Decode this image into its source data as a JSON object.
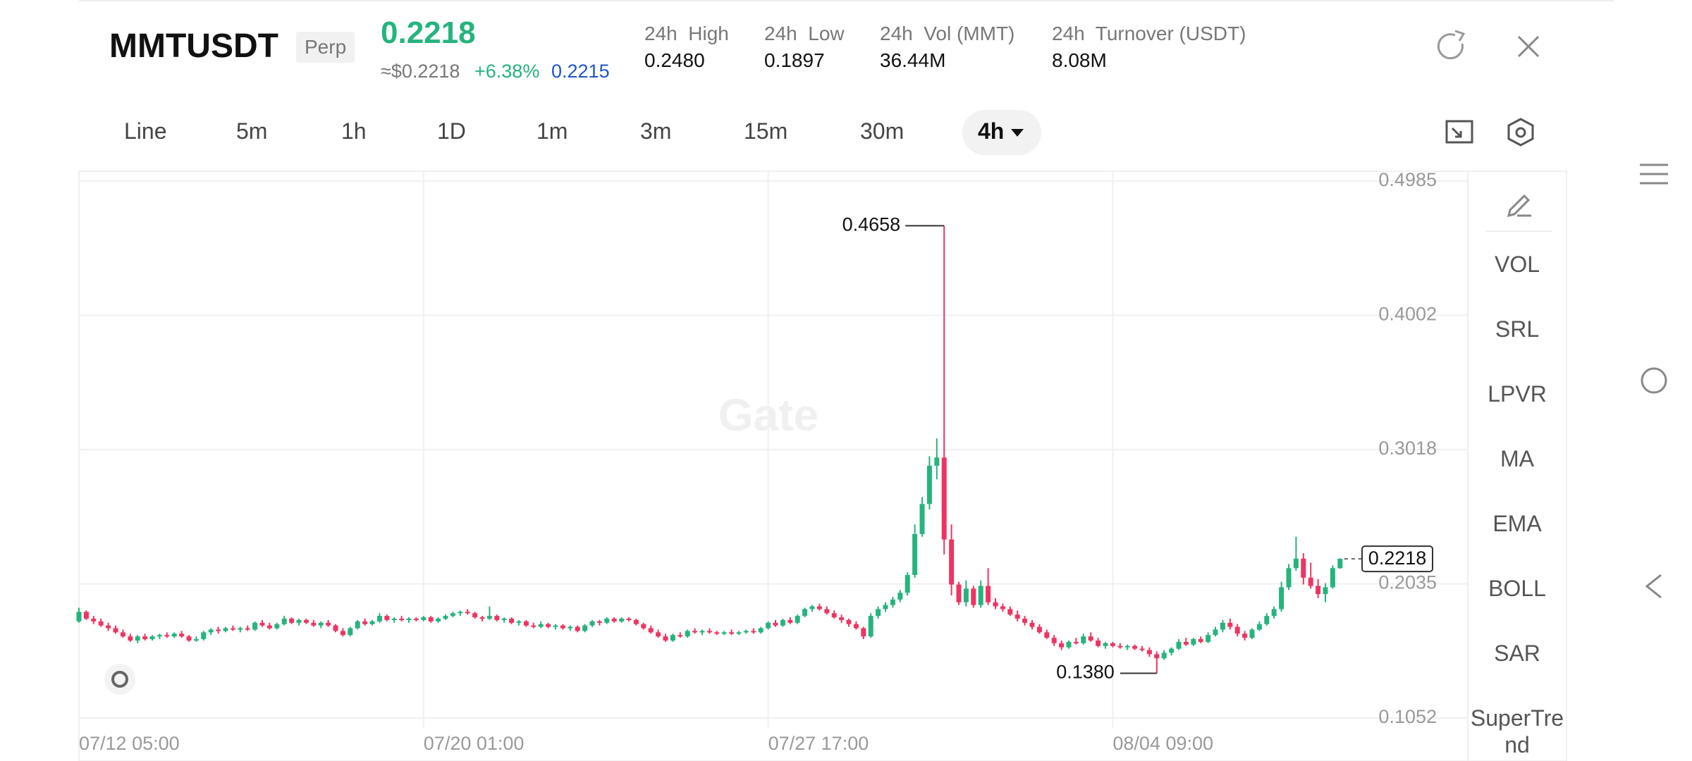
{
  "header": {
    "symbol": "MMTUSDT",
    "badge": "Perp",
    "price": "0.2218",
    "approx": "≈$0.2218",
    "change": "+6.38%",
    "mark": "0.2215",
    "stats": [
      {
        "label": "24h  High",
        "value": "0.2480"
      },
      {
        "label": "24h  Low",
        "value": "0.1897"
      },
      {
        "label": "24h  Vol (MMT)",
        "value": "36.44M"
      },
      {
        "label": "24h  Turnover (USDT)",
        "value": "8.08M"
      }
    ]
  },
  "timeframes": [
    "Line",
    "5m",
    "1h",
    "1D",
    "1m",
    "3m",
    "15m",
    "30m",
    "4h"
  ],
  "indicators": [
    "VOL",
    "SRL",
    "LPVR",
    "MA",
    "EMA",
    "BOLL",
    "SAR",
    "SuperTrend"
  ],
  "chart_data": {
    "type": "candlestick",
    "watermark": "Gate",
    "ylim": [
      0.098,
      0.5057
    ],
    "yticks": [
      0.4985,
      0.4002,
      0.3018,
      0.2035,
      0.1052
    ],
    "xticks": [
      {
        "value": 0,
        "label": "07/12 05:00"
      },
      {
        "value": 47,
        "label": "07/20 01:00"
      },
      {
        "value": 94,
        "label": "07/27 17:00"
      },
      {
        "value": 141,
        "label": "08/04 09:00"
      }
    ],
    "up_color": "#25b47c",
    "down_color": "#ef3461",
    "high_label": {
      "value": 0.4658,
      "label": "0.4658"
    },
    "low_label": {
      "value": 0.138,
      "label": "0.1380"
    },
    "last_label": {
      "value": 0.2218,
      "label": "0.2218"
    },
    "ohlc": [
      [
        0.176,
        0.186,
        0.175,
        0.183
      ],
      [
        0.183,
        0.184,
        0.177,
        0.178
      ],
      [
        0.178,
        0.18,
        0.174,
        0.176
      ],
      [
        0.176,
        0.178,
        0.172,
        0.173
      ],
      [
        0.173,
        0.175,
        0.169,
        0.171
      ],
      [
        0.171,
        0.173,
        0.167,
        0.168
      ],
      [
        0.168,
        0.17,
        0.164,
        0.165
      ],
      [
        0.165,
        0.167,
        0.161,
        0.162
      ],
      [
        0.162,
        0.166,
        0.16,
        0.165
      ],
      [
        0.165,
        0.167,
        0.162,
        0.163
      ],
      [
        0.163,
        0.166,
        0.162,
        0.165
      ],
      [
        0.165,
        0.167,
        0.163,
        0.166
      ],
      [
        0.166,
        0.168,
        0.164,
        0.165
      ],
      [
        0.165,
        0.168,
        0.164,
        0.167
      ],
      [
        0.167,
        0.169,
        0.164,
        0.165
      ],
      [
        0.165,
        0.166,
        0.161,
        0.162
      ],
      [
        0.162,
        0.165,
        0.161,
        0.163
      ],
      [
        0.163,
        0.169,
        0.162,
        0.168
      ],
      [
        0.168,
        0.171,
        0.166,
        0.17
      ],
      [
        0.17,
        0.172,
        0.167,
        0.169
      ],
      [
        0.169,
        0.172,
        0.168,
        0.171
      ],
      [
        0.171,
        0.173,
        0.169,
        0.17
      ],
      [
        0.17,
        0.172,
        0.168,
        0.171
      ],
      [
        0.171,
        0.173,
        0.169,
        0.17
      ],
      [
        0.17,
        0.176,
        0.169,
        0.175
      ],
      [
        0.175,
        0.177,
        0.172,
        0.173
      ],
      [
        0.173,
        0.175,
        0.17,
        0.171
      ],
      [
        0.171,
        0.175,
        0.17,
        0.174
      ],
      [
        0.174,
        0.18,
        0.173,
        0.178
      ],
      [
        0.178,
        0.179,
        0.174,
        0.175
      ],
      [
        0.175,
        0.178,
        0.173,
        0.177
      ],
      [
        0.177,
        0.178,
        0.174,
        0.175
      ],
      [
        0.175,
        0.177,
        0.172,
        0.173
      ],
      [
        0.173,
        0.176,
        0.171,
        0.175
      ],
      [
        0.175,
        0.177,
        0.172,
        0.173
      ],
      [
        0.173,
        0.174,
        0.168,
        0.169
      ],
      [
        0.169,
        0.171,
        0.165,
        0.166
      ],
      [
        0.166,
        0.172,
        0.165,
        0.171
      ],
      [
        0.171,
        0.177,
        0.17,
        0.176
      ],
      [
        0.176,
        0.178,
        0.173,
        0.174
      ],
      [
        0.174,
        0.177,
        0.173,
        0.176
      ],
      [
        0.176,
        0.182,
        0.175,
        0.18
      ],
      [
        0.18,
        0.181,
        0.176,
        0.177
      ],
      [
        0.177,
        0.179,
        0.175,
        0.178
      ],
      [
        0.178,
        0.18,
        0.176,
        0.177
      ],
      [
        0.177,
        0.179,
        0.175,
        0.178
      ],
      [
        0.178,
        0.179,
        0.176,
        0.177
      ],
      [
        0.177,
        0.18,
        0.176,
        0.179
      ],
      [
        0.179,
        0.18,
        0.175,
        0.176
      ],
      [
        0.176,
        0.179,
        0.175,
        0.178
      ],
      [
        0.178,
        0.181,
        0.177,
        0.18
      ],
      [
        0.18,
        0.183,
        0.179,
        0.182
      ],
      [
        0.182,
        0.184,
        0.18,
        0.183
      ],
      [
        0.183,
        0.185,
        0.181,
        0.182
      ],
      [
        0.182,
        0.183,
        0.178,
        0.179
      ],
      [
        0.179,
        0.18,
        0.176,
        0.178
      ],
      [
        0.178,
        0.187,
        0.177,
        0.18
      ],
      [
        0.18,
        0.181,
        0.176,
        0.177
      ],
      [
        0.177,
        0.179,
        0.175,
        0.178
      ],
      [
        0.178,
        0.179,
        0.174,
        0.175
      ],
      [
        0.175,
        0.177,
        0.173,
        0.176
      ],
      [
        0.176,
        0.177,
        0.172,
        0.173
      ],
      [
        0.173,
        0.175,
        0.171,
        0.172
      ],
      [
        0.172,
        0.176,
        0.171,
        0.174
      ],
      [
        0.174,
        0.175,
        0.171,
        0.172
      ],
      [
        0.172,
        0.174,
        0.17,
        0.173
      ],
      [
        0.173,
        0.174,
        0.17,
        0.171
      ],
      [
        0.171,
        0.173,
        0.169,
        0.172
      ],
      [
        0.172,
        0.173,
        0.168,
        0.169
      ],
      [
        0.169,
        0.174,
        0.168,
        0.173
      ],
      [
        0.173,
        0.177,
        0.172,
        0.176
      ],
      [
        0.176,
        0.177,
        0.173,
        0.175
      ],
      [
        0.175,
        0.179,
        0.174,
        0.178
      ],
      [
        0.178,
        0.179,
        0.175,
        0.176
      ],
      [
        0.176,
        0.179,
        0.175,
        0.178
      ],
      [
        0.178,
        0.179,
        0.176,
        0.177
      ],
      [
        0.177,
        0.178,
        0.173,
        0.174
      ],
      [
        0.174,
        0.175,
        0.17,
        0.171
      ],
      [
        0.171,
        0.173,
        0.167,
        0.168
      ],
      [
        0.168,
        0.17,
        0.164,
        0.165
      ],
      [
        0.165,
        0.167,
        0.161,
        0.162
      ],
      [
        0.162,
        0.167,
        0.161,
        0.166
      ],
      [
        0.166,
        0.168,
        0.164,
        0.165
      ],
      [
        0.165,
        0.17,
        0.164,
        0.169
      ],
      [
        0.169,
        0.171,
        0.167,
        0.168
      ],
      [
        0.168,
        0.17,
        0.166,
        0.169
      ],
      [
        0.169,
        0.171,
        0.167,
        0.168
      ],
      [
        0.168,
        0.169,
        0.166,
        0.167
      ],
      [
        0.167,
        0.169,
        0.166,
        0.168
      ],
      [
        0.168,
        0.17,
        0.166,
        0.167
      ],
      [
        0.167,
        0.169,
        0.166,
        0.168
      ],
      [
        0.168,
        0.17,
        0.167,
        0.169
      ],
      [
        0.169,
        0.171,
        0.167,
        0.168
      ],
      [
        0.168,
        0.172,
        0.167,
        0.171
      ],
      [
        0.171,
        0.176,
        0.17,
        0.175
      ],
      [
        0.175,
        0.177,
        0.172,
        0.173
      ],
      [
        0.173,
        0.178,
        0.172,
        0.177
      ],
      [
        0.177,
        0.179,
        0.174,
        0.175
      ],
      [
        0.175,
        0.181,
        0.174,
        0.18
      ],
      [
        0.18,
        0.186,
        0.179,
        0.185
      ],
      [
        0.185,
        0.188,
        0.183,
        0.187
      ],
      [
        0.187,
        0.189,
        0.184,
        0.185
      ],
      [
        0.185,
        0.187,
        0.181,
        0.182
      ],
      [
        0.182,
        0.184,
        0.178,
        0.179
      ],
      [
        0.179,
        0.181,
        0.175,
        0.177
      ],
      [
        0.177,
        0.178,
        0.172,
        0.174
      ],
      [
        0.174,
        0.176,
        0.17,
        0.171
      ],
      [
        0.171,
        0.172,
        0.163,
        0.165
      ],
      [
        0.165,
        0.182,
        0.164,
        0.18
      ],
      [
        0.18,
        0.187,
        0.178,
        0.185
      ],
      [
        0.185,
        0.19,
        0.183,
        0.188
      ],
      [
        0.188,
        0.194,
        0.186,
        0.192
      ],
      [
        0.192,
        0.199,
        0.19,
        0.197
      ],
      [
        0.197,
        0.212,
        0.195,
        0.21
      ],
      [
        0.21,
        0.247,
        0.208,
        0.24
      ],
      [
        0.24,
        0.267,
        0.238,
        0.262
      ],
      [
        0.262,
        0.297,
        0.258,
        0.29
      ],
      [
        0.29,
        0.31,
        0.28,
        0.296
      ],
      [
        0.296,
        0.4658,
        0.225,
        0.236
      ],
      [
        0.236,
        0.247,
        0.195,
        0.203
      ],
      [
        0.203,
        0.205,
        0.188,
        0.19
      ],
      [
        0.19,
        0.206,
        0.187,
        0.2
      ],
      [
        0.2,
        0.202,
        0.186,
        0.188
      ],
      [
        0.188,
        0.206,
        0.186,
        0.202
      ],
      [
        0.202,
        0.215,
        0.188,
        0.19
      ],
      [
        0.19,
        0.193,
        0.185,
        0.187
      ],
      [
        0.187,
        0.189,
        0.183,
        0.185
      ],
      [
        0.185,
        0.187,
        0.18,
        0.181
      ],
      [
        0.181,
        0.184,
        0.176,
        0.178
      ],
      [
        0.178,
        0.18,
        0.173,
        0.175
      ],
      [
        0.175,
        0.177,
        0.17,
        0.172
      ],
      [
        0.172,
        0.174,
        0.167,
        0.168
      ],
      [
        0.168,
        0.17,
        0.163,
        0.164
      ],
      [
        0.164,
        0.166,
        0.158,
        0.16
      ],
      [
        0.16,
        0.162,
        0.155,
        0.157
      ],
      [
        0.157,
        0.162,
        0.156,
        0.161
      ],
      [
        0.161,
        0.164,
        0.159,
        0.16
      ],
      [
        0.16,
        0.167,
        0.159,
        0.165
      ],
      [
        0.165,
        0.168,
        0.161,
        0.162
      ],
      [
        0.162,
        0.164,
        0.157,
        0.158
      ],
      [
        0.158,
        0.161,
        0.156,
        0.16
      ],
      [
        0.16,
        0.161,
        0.157,
        0.158
      ],
      [
        0.158,
        0.16,
        0.156,
        0.157
      ],
      [
        0.157,
        0.159,
        0.155,
        0.158
      ],
      [
        0.158,
        0.159,
        0.155,
        0.156
      ],
      [
        0.156,
        0.158,
        0.154,
        0.155
      ],
      [
        0.155,
        0.157,
        0.15,
        0.152
      ],
      [
        0.152,
        0.154,
        0.138,
        0.149
      ],
      [
        0.149,
        0.155,
        0.148,
        0.153
      ],
      [
        0.153,
        0.157,
        0.151,
        0.156
      ],
      [
        0.156,
        0.163,
        0.155,
        0.161
      ],
      [
        0.161,
        0.164,
        0.158,
        0.159
      ],
      [
        0.159,
        0.164,
        0.158,
        0.163
      ],
      [
        0.163,
        0.165,
        0.16,
        0.161
      ],
      [
        0.161,
        0.168,
        0.16,
        0.166
      ],
      [
        0.166,
        0.172,
        0.165,
        0.17
      ],
      [
        0.17,
        0.177,
        0.168,
        0.175
      ],
      [
        0.175,
        0.178,
        0.17,
        0.172
      ],
      [
        0.172,
        0.174,
        0.165,
        0.167
      ],
      [
        0.167,
        0.169,
        0.162,
        0.164
      ],
      [
        0.164,
        0.171,
        0.163,
        0.17
      ],
      [
        0.17,
        0.176,
        0.169,
        0.174
      ],
      [
        0.174,
        0.182,
        0.173,
        0.18
      ],
      [
        0.18,
        0.187,
        0.178,
        0.185
      ],
      [
        0.185,
        0.205,
        0.183,
        0.201
      ],
      [
        0.201,
        0.218,
        0.199,
        0.215
      ],
      [
        0.215,
        0.238,
        0.213,
        0.222
      ],
      [
        0.222,
        0.226,
        0.203,
        0.208
      ],
      [
        0.208,
        0.219,
        0.2,
        0.202
      ],
      [
        0.202,
        0.207,
        0.193,
        0.196
      ],
      [
        0.196,
        0.204,
        0.19,
        0.201
      ],
      [
        0.201,
        0.217,
        0.2,
        0.215
      ],
      [
        0.215,
        0.2222,
        0.2145,
        0.2218
      ]
    ]
  }
}
